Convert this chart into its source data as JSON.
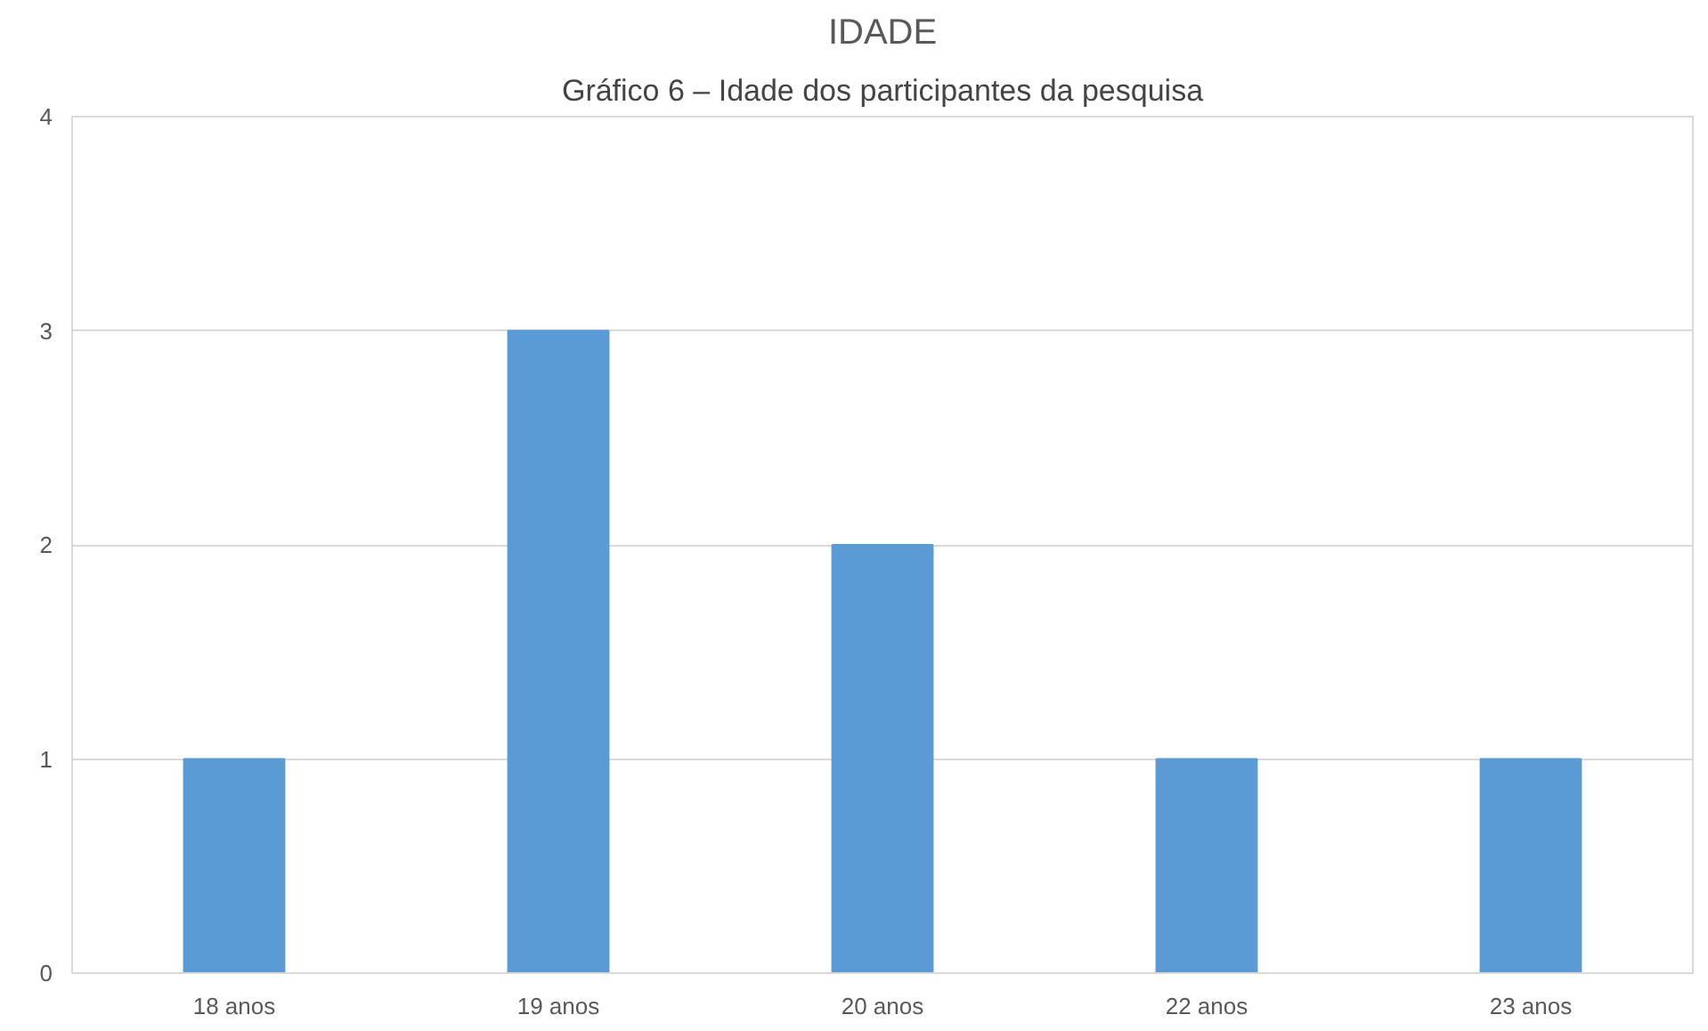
{
  "chart_data": {
    "type": "bar",
    "title": "IDADE",
    "annotations": [
      "Gráfico 6 – Idade dos participantes da pesquisa"
    ],
    "categories": [
      "18 anos",
      "19 anos",
      "20 anos",
      "22 anos",
      "23 anos"
    ],
    "values": [
      1,
      3,
      2,
      1,
      1
    ],
    "color": "#5b9bd5",
    "ylim": [
      0,
      4
    ],
    "yticks": [
      0,
      1,
      2,
      3,
      4
    ],
    "grid": "y"
  }
}
